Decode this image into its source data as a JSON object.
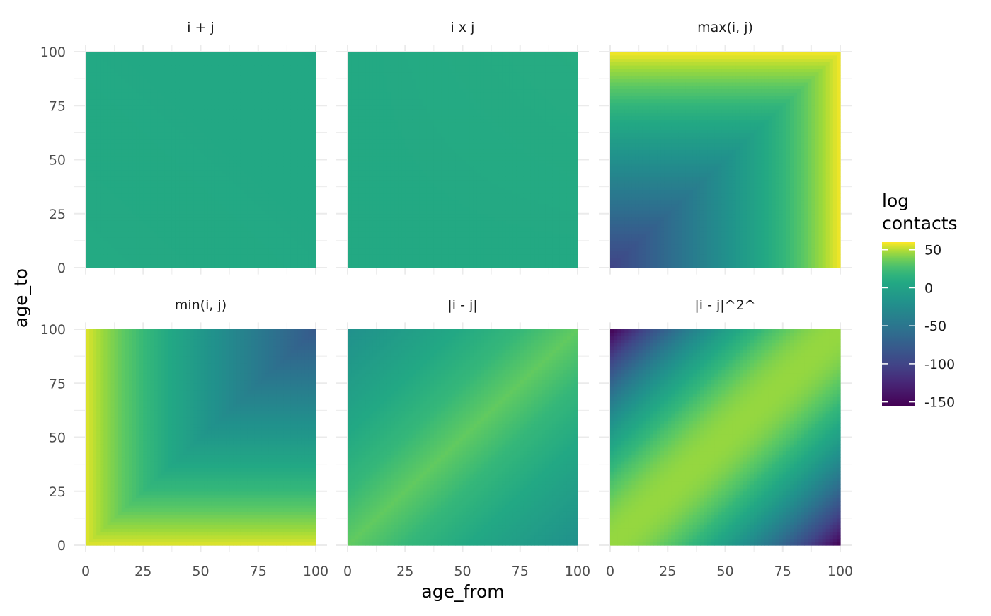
{
  "chart_data": {
    "type": "heatmap",
    "title": "",
    "xlabel": "age_from",
    "ylabel": "age_to",
    "xlim": [
      0,
      100
    ],
    "ylim": [
      0,
      100
    ],
    "x_ticks": [
      0,
      25,
      50,
      75,
      100
    ],
    "y_ticks": [
      0,
      25,
      50,
      75,
      100
    ],
    "grid": true,
    "colormap": "viridis",
    "legend": {
      "title_lines": [
        "log",
        "contacts"
      ],
      "position": "right",
      "ticks": [
        50,
        0,
        -50,
        -100,
        -150
      ],
      "tick_labels": [
        "50",
        "0",
        "-50",
        "-100",
        "-150"
      ],
      "range": [
        -155,
        60
      ]
    },
    "panels": [
      {
        "label": "i + j",
        "formula": "sum"
      },
      {
        "label": "i x j",
        "formula": "product"
      },
      {
        "label": "max(i, j)",
        "formula": "max"
      },
      {
        "label": "min(i, j)",
        "formula": "min"
      },
      {
        "label": "|i - j|",
        "formula": "absdiff"
      },
      {
        "label": "|i - j|^2^",
        "formula": "sqdiff"
      }
    ]
  }
}
